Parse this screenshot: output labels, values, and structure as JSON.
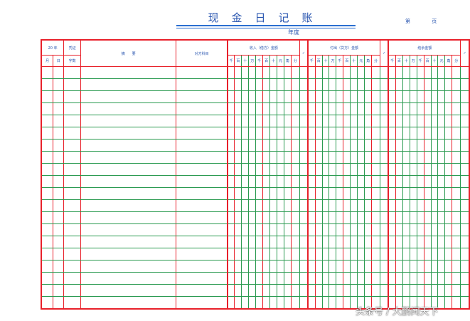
{
  "title": "现金日记账",
  "year_label": "年度",
  "page_label": "第 页",
  "header": {
    "year": "20  年",
    "month": "月",
    "day": "日",
    "voucher_top": "凭证",
    "voucher_bottom": "字数",
    "summary": "摘　　要",
    "counter_account": "对方科目",
    "income": "收入（借方）金额",
    "payout": "付出（贷方）金额",
    "balance": "结余金额",
    "check": "✓",
    "digits": [
      "千",
      "百",
      "十",
      "万",
      "千",
      "百",
      "十",
      "元",
      "角",
      "分"
    ]
  },
  "watermark": "头条号 / 大鹏闻天下",
  "colors": {
    "border": "#e8202a",
    "grid": "#2a9a50",
    "text": "#2a56b0"
  }
}
